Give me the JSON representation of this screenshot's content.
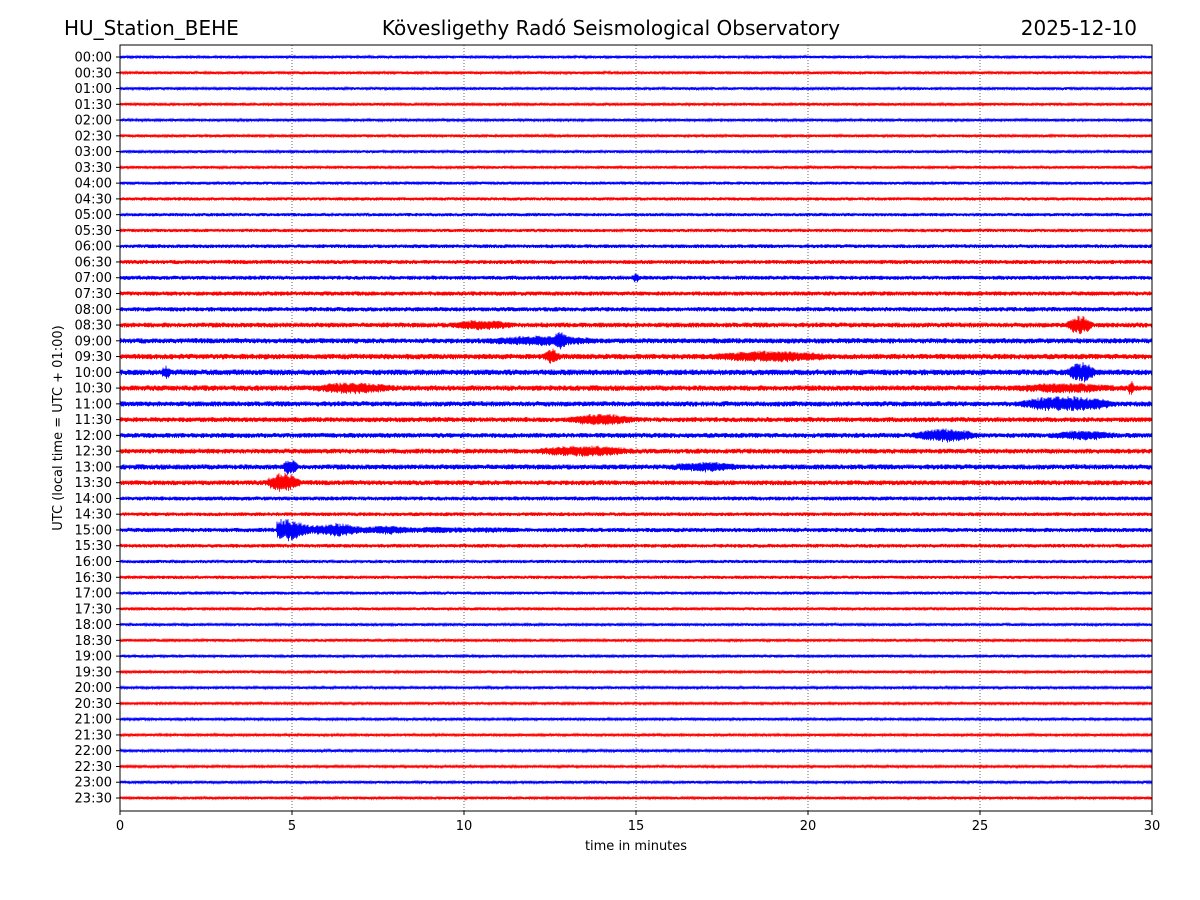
{
  "header": {
    "station": "HU_Station_BEHE",
    "observatory": "Kövesligethy Radó Seismological Observatory",
    "date": "2025-12-10"
  },
  "chart_data": {
    "type": "line",
    "title": "Kövesligethy Radó Seismological Observatory",
    "xlabel": "time in minutes",
    "ylabel": "UTC (local time = UTC + 01:00)",
    "xlim": [
      0,
      30
    ],
    "xticks": [
      0,
      5,
      10,
      15,
      20,
      25,
      30
    ],
    "grid": "vertical dotted at x ticks",
    "colors": [
      "#0000ff",
      "#ff0000"
    ],
    "rows": [
      "00:00",
      "00:30",
      "01:00",
      "01:30",
      "02:00",
      "02:30",
      "03:00",
      "03:30",
      "04:00",
      "04:30",
      "05:00",
      "05:30",
      "06:00",
      "06:30",
      "07:00",
      "07:30",
      "08:00",
      "08:30",
      "09:00",
      "09:30",
      "10:00",
      "10:30",
      "11:00",
      "11:30",
      "12:00",
      "12:30",
      "13:00",
      "13:30",
      "14:00",
      "14:30",
      "15:00",
      "15:30",
      "16:00",
      "16:30",
      "17:00",
      "17:30",
      "18:00",
      "18:30",
      "19:00",
      "19:30",
      "20:00",
      "20:30",
      "21:00",
      "21:30",
      "22:00",
      "22:30",
      "23:00",
      "23:30"
    ],
    "noise_level": [
      1,
      1,
      1,
      1,
      0.9,
      1,
      1,
      1,
      1.1,
      1.2,
      1.2,
      1.2,
      1.4,
      1.5,
      1.5,
      1.6,
      1.6,
      1.8,
      1.9,
      2,
      2.1,
      2,
      1.9,
      1.8,
      1.8,
      1.8,
      1.9,
      1.8,
      1.5,
      1.4,
      1.6,
      1.4,
      1.2,
      1.2,
      1.1,
      1.1,
      1,
      1,
      1,
      1,
      0.9,
      0.9,
      0.9,
      0.9,
      0.9,
      0.9,
      1,
      1
    ],
    "events": [
      {
        "row": "07:00",
        "start": 14.9,
        "end": 15.1,
        "amp": 4
      },
      {
        "row": "08:30",
        "start": 9.5,
        "end": 11.5,
        "amp": 3
      },
      {
        "row": "08:30",
        "start": 27.5,
        "end": 28.3,
        "amp": 8
      },
      {
        "row": "09:00",
        "start": 10.5,
        "end": 14,
        "amp": 3
      },
      {
        "row": "09:00",
        "start": 12.6,
        "end": 13.0,
        "amp": 5
      },
      {
        "row": "09:30",
        "start": 12.3,
        "end": 12.8,
        "amp": 6
      },
      {
        "row": "09:30",
        "start": 17,
        "end": 20.8,
        "amp": 3.5
      },
      {
        "row": "10:00",
        "start": 1.2,
        "end": 1.5,
        "amp": 4
      },
      {
        "row": "10:00",
        "start": 27.5,
        "end": 28.4,
        "amp": 8
      },
      {
        "row": "10:30",
        "start": 5.5,
        "end": 8,
        "amp": 3.5
      },
      {
        "row": "10:30",
        "start": 26,
        "end": 29,
        "amp": 3
      },
      {
        "row": "10:30",
        "start": 29.3,
        "end": 29.5,
        "amp": 6
      },
      {
        "row": "11:00",
        "start": 26,
        "end": 29,
        "amp": 6
      },
      {
        "row": "11:30",
        "start": 13,
        "end": 15,
        "amp": 4
      },
      {
        "row": "12:00",
        "start": 23,
        "end": 25,
        "amp": 5
      },
      {
        "row": "12:00",
        "start": 27,
        "end": 29,
        "amp": 3
      },
      {
        "row": "12:30",
        "start": 12,
        "end": 15,
        "amp": 3.5
      },
      {
        "row": "13:00",
        "start": 4.7,
        "end": 5.2,
        "amp": 6
      },
      {
        "row": "13:00",
        "start": 16,
        "end": 18,
        "amp": 3
      },
      {
        "row": "13:30",
        "start": 4.2,
        "end": 5.3,
        "amp": 8
      },
      {
        "row": "15:00",
        "start": 4.55,
        "end": 11.5,
        "amp": 11
      }
    ]
  }
}
